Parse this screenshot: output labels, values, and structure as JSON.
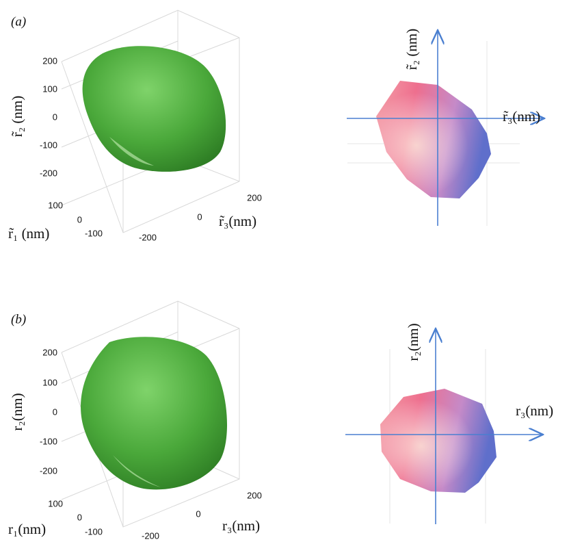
{
  "panels": [
    {
      "label": "(a)",
      "plot_3d": {
        "z_axis_label": "r̃₂ (nm)",
        "z_ticks": [
          200,
          100,
          0,
          -100,
          -200
        ],
        "x_axis_label": "r̃₁ (nm)",
        "x_ticks": [
          100,
          0,
          -100
        ],
        "y_axis_label": "r̃₃(nm)",
        "y_ticks": [
          200,
          0,
          -200
        ]
      },
      "projection": {
        "vertical_axis_label": "r̃₂ (nm)",
        "horizontal_axis_label": "r̃₃(nm)"
      }
    },
    {
      "label": "(b)",
      "plot_3d": {
        "z_axis_label": "r₂(nm)",
        "z_ticks": [
          200,
          100,
          0,
          -100,
          -200
        ],
        "x_axis_label": "r₁(nm)",
        "x_ticks": [
          100,
          0,
          -100
        ],
        "y_axis_label": "r₃(nm)",
        "y_ticks": [
          200,
          0,
          -200
        ]
      },
      "projection": {
        "vertical_axis_label": "r₂(nm)",
        "horizontal_axis_label": "r₃(nm)"
      }
    }
  ]
}
